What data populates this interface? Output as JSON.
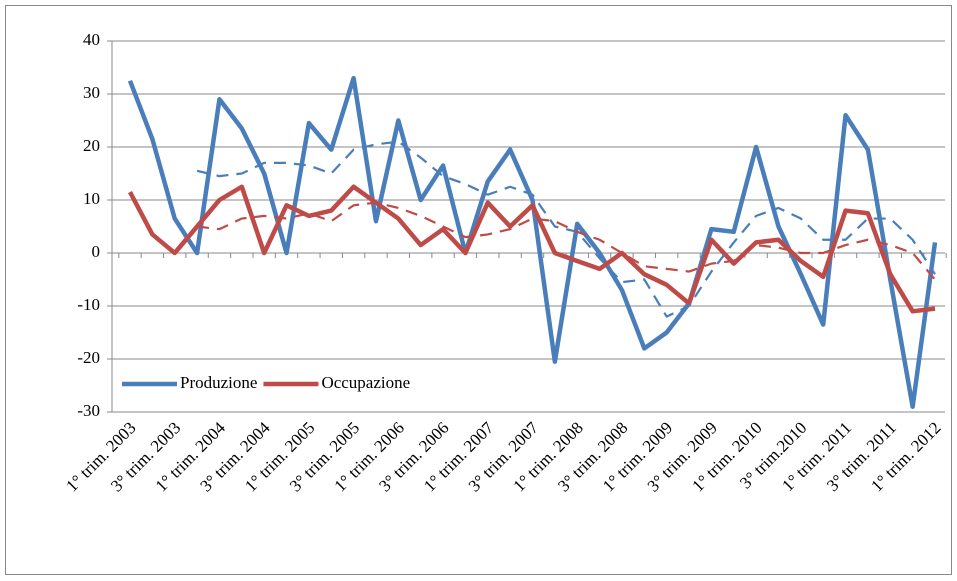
{
  "chart_data": {
    "type": "line",
    "categories": [
      "1° trim. 2003",
      null,
      "3° trim. 2003",
      null,
      "1° trim. 2004",
      null,
      "3° trim. 2004",
      null,
      "1° trim. 2005",
      null,
      "3° trim. 2005",
      null,
      "1° trim. 2006",
      null,
      "3° trim. 2006",
      null,
      "1° trim. 2007",
      null,
      "3° trim. 2007",
      null,
      "1° trim. 2008",
      null,
      "3° trim. 2008",
      null,
      "1° trim. 2009",
      null,
      "3° trim. 2009",
      null,
      "1° trim. 2010",
      null,
      "3° trim.2010",
      null,
      "1° trim. 2011",
      null,
      "3° trim. 2011",
      null,
      "1° trim. 2012"
    ],
    "series": [
      {
        "name": "Produzione",
        "color": "#4a7ebb",
        "values": [
          32.5,
          21.5,
          6.5,
          0,
          29,
          23.5,
          15,
          0,
          24.5,
          19.5,
          33,
          6,
          25,
          10,
          16.5,
          0,
          13.5,
          19.5,
          10,
          -20.5,
          5.5,
          0,
          -7,
          -18,
          -15,
          -9.5,
          4.5,
          4,
          20,
          5,
          -4,
          -13.5,
          26,
          19.5,
          -5,
          -29,
          2
        ]
      },
      {
        "name": "Occupazione",
        "color": "#be4b48",
        "values": [
          11.5,
          3.5,
          0,
          5,
          10,
          12.5,
          0,
          9,
          7,
          8,
          12.5,
          9.5,
          6.5,
          1.5,
          4.5,
          0,
          9.5,
          5,
          9,
          0,
          -1.5,
          -3,
          0,
          -4,
          -6,
          -9.5,
          2.5,
          -2,
          2,
          2.5,
          -1.5,
          -4.5,
          8,
          7.5,
          -4,
          -11,
          -10.5
        ]
      },
      {
        "color": "#4a7ebb",
        "dashed": true,
        "values": [
          null,
          null,
          null,
          15.5,
          14.5,
          15,
          17,
          17,
          16.5,
          15,
          19.5,
          20.5,
          21,
          18,
          14.5,
          13,
          11,
          12.5,
          11,
          5,
          4,
          -1,
          -5.5,
          -5,
          -12,
          -10,
          -3.5,
          2,
          7,
          8.5,
          6.5,
          2.5,
          2.5,
          6.5,
          6.5,
          2.5,
          -4
        ]
      },
      {
        "color": "#be4b48",
        "dashed": true,
        "values": [
          null,
          null,
          null,
          5,
          4.5,
          6.5,
          7,
          6.5,
          7.5,
          6,
          9,
          9.5,
          8.5,
          7,
          5,
          3,
          3.5,
          4.5,
          6.5,
          6,
          4,
          2.5,
          0,
          -2.5,
          -3,
          -3.5,
          -2,
          -1.5,
          1.5,
          1,
          0,
          0,
          1.5,
          2.5,
          1.5,
          0,
          -5
        ]
      }
    ],
    "ylim": [
      -30,
      40
    ],
    "yticks": [
      -30,
      -20,
      -10,
      0,
      10,
      20,
      30,
      40
    ],
    "grid": true,
    "legend": "lower-left"
  }
}
